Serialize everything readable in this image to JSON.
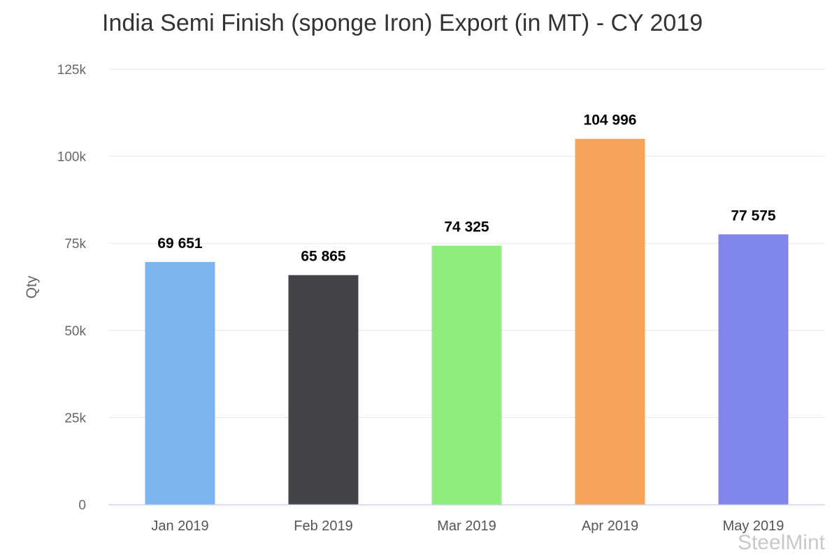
{
  "chart_data": {
    "type": "bar",
    "title": "India Semi Finish (sponge Iron) Export (in MT) - CY 2019",
    "ylabel": "Qty",
    "xlabel": "",
    "categories": [
      "Jan 2019",
      "Feb 2019",
      "Mar 2019",
      "Apr 2019",
      "May 2019"
    ],
    "values": [
      69651,
      65865,
      74325,
      104996,
      77575
    ],
    "data_labels": [
      "69 651",
      "65 865",
      "74 325",
      "104 996",
      "77 575"
    ],
    "colors": [
      "#7cb5ec",
      "#434348",
      "#90ed7d",
      "#f7a35c",
      "#8085e9"
    ],
    "ylim": [
      0,
      125000
    ],
    "yticks": [
      0,
      25000,
      50000,
      75000,
      100000,
      125000
    ],
    "ytick_labels": [
      "0",
      "25k",
      "50k",
      "75k",
      "100k",
      "125k"
    ],
    "grid": true,
    "legend": "none"
  },
  "watermark": "SteelMint"
}
